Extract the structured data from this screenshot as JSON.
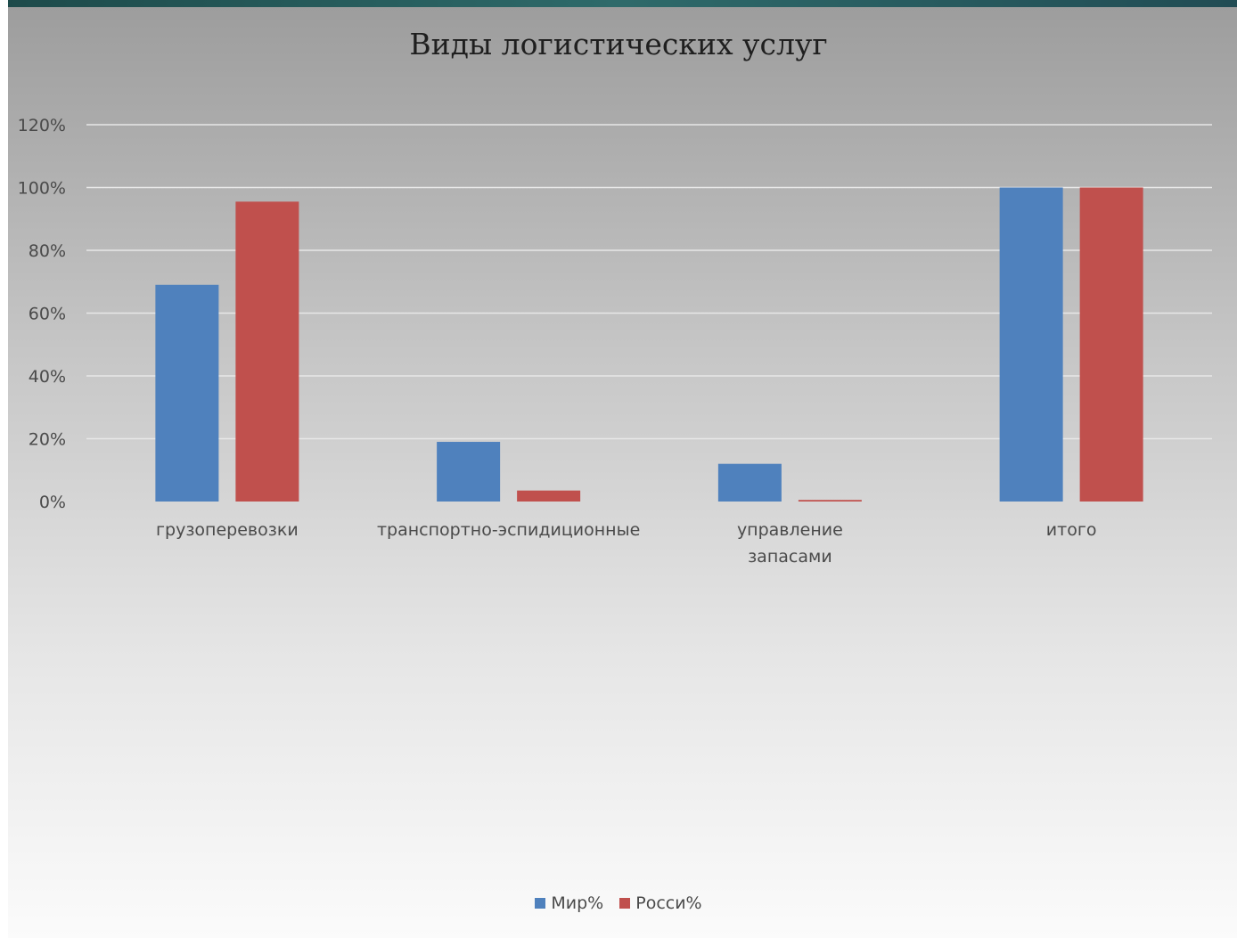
{
  "chart_data": {
    "type": "bar",
    "title": "Виды логистических услуг",
    "categories": [
      [
        "грузоперевозки"
      ],
      [
        "транспортно-эспидиционные"
      ],
      [
        "управление",
        "запасами"
      ],
      [
        "итого"
      ]
    ],
    "series": [
      {
        "name": "Мир%",
        "color": "#4f81bd",
        "values": [
          69,
          19,
          12,
          100
        ]
      },
      {
        "name": "Росси%",
        "color": "#c0504d",
        "values": [
          95.5,
          3.5,
          0.5,
          100
        ]
      }
    ],
    "ylim": [
      0,
      120
    ],
    "yticks": [
      0,
      20,
      40,
      60,
      80,
      100,
      120
    ],
    "ytick_labels": [
      "0%",
      "20%",
      "40%",
      "60%",
      "80%",
      "100%",
      "120%"
    ],
    "grid": true,
    "legend_position": "bottom"
  }
}
